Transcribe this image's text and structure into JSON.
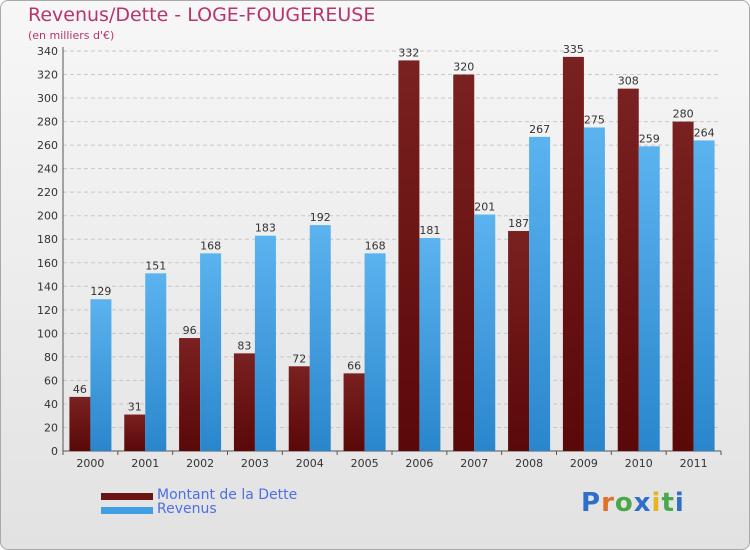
{
  "title": "Revenus/Dette - LOGE-FOUGEREUSE",
  "subtitle": "(en milliers d'€)",
  "colors": {
    "dette": "#6b1414",
    "revenus": "#3f9fe2",
    "title": "#b8346e",
    "legend_text": "#4d6fe0",
    "grid": "#c8c8c8"
  },
  "logo": {
    "text": "Proxiti",
    "letters": [
      "P",
      "r",
      "o",
      "x",
      "i",
      "t",
      "i"
    ],
    "letter_colors": [
      "#2f6fc7",
      "#e0702a",
      "#4aa84a",
      "#2f6fc7",
      "#e3b520",
      "#4aa84a",
      "#2f6fc7"
    ]
  },
  "chart_data": {
    "type": "bar",
    "title": "Revenus/Dette - LOGE-FOUGEREUSE",
    "subtitle": "(en milliers d'€)",
    "xlabel": "",
    "ylabel": "",
    "ylim": [
      0,
      340
    ],
    "ytick_step": 20,
    "grid": true,
    "legend_position": "bottom-left",
    "categories": [
      "2000",
      "2001",
      "2002",
      "2003",
      "2004",
      "2005",
      "2006",
      "2007",
      "2008",
      "2009",
      "2010",
      "2011"
    ],
    "series": [
      {
        "name": "Montant de la Dette",
        "color": "#6b1414",
        "values": [
          46,
          31,
          96,
          83,
          72,
          66,
          332,
          320,
          187,
          335,
          308,
          280
        ]
      },
      {
        "name": "Revenus",
        "color": "#3f9fe2",
        "values": [
          129,
          151,
          168,
          183,
          192,
          168,
          181,
          201,
          267,
          275,
          259,
          264
        ]
      }
    ]
  }
}
